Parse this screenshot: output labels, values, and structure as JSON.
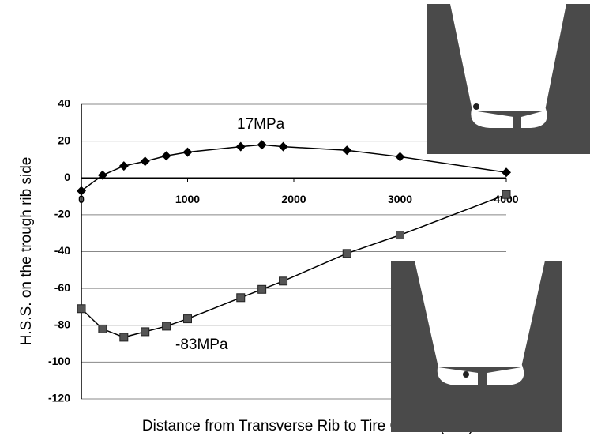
{
  "chart_data": {
    "type": "line",
    "x_label": "Distance from Transverse Rib to Tire Center (mm)",
    "y_label": "H.S.S. on the trough rib side",
    "annotations": [
      "17MPa",
      "-83MPa"
    ],
    "x": [
      0,
      200,
      400,
      600,
      800,
      1000,
      1500,
      1700,
      1900,
      2500,
      3000,
      4000
    ],
    "series": [
      {
        "color": "#000000",
        "marker": "diamond",
        "values": [
          -7,
          1.5,
          6.5,
          9,
          12,
          14,
          17,
          18,
          17,
          15,
          11.5,
          3
        ]
      },
      {
        "color": "#000000",
        "marker": "square",
        "values": [
          -71,
          -82,
          -86.5,
          -83.5,
          -80.5,
          -76.5,
          -65,
          -60.5,
          -56,
          -41,
          -31,
          -9
        ]
      }
    ],
    "xlim": [
      0,
      4000
    ],
    "xticks": [
      0,
      1000,
      2000,
      3000,
      4000
    ],
    "ylim": [
      -120,
      40
    ],
    "yticks": [
      -120,
      -100,
      -80,
      -60,
      -40,
      -20,
      0,
      20,
      40
    ],
    "grid": true
  }
}
